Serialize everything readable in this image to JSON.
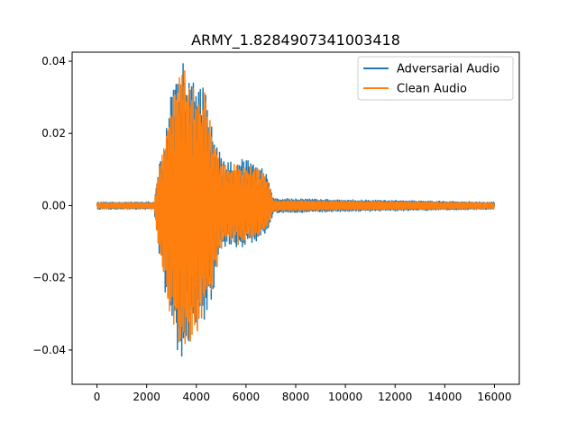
{
  "chart_data": {
    "type": "line",
    "title": "ARMY_1.8284907341003418",
    "xlabel": "",
    "ylabel": "",
    "xlim": [
      -1000,
      17000
    ],
    "ylim": [
      -0.0495,
      0.0425
    ],
    "x_ticks": [
      0,
      2000,
      4000,
      6000,
      8000,
      10000,
      12000,
      14000,
      16000
    ],
    "x_tick_labels": [
      "0",
      "2000",
      "4000",
      "6000",
      "8000",
      "10000",
      "12000",
      "14000",
      "16000"
    ],
    "y_ticks": [
      -0.04,
      -0.02,
      0.0,
      0.02,
      0.04
    ],
    "y_tick_labels": [
      "−0.04",
      "−0.02",
      "0.00",
      "0.02",
      "0.04"
    ],
    "grid": false,
    "legend_position": "top-right",
    "x_range": [
      0,
      16000
    ],
    "series": [
      {
        "name": "Adversarial Audio",
        "color": "#1f77b4",
        "envelope": [
          {
            "x": 0,
            "max": 0.001,
            "min": -0.001
          },
          {
            "x": 2300,
            "max": 0.001,
            "min": -0.001
          },
          {
            "x": 2500,
            "max": 0.012,
            "min": -0.014
          },
          {
            "x": 2700,
            "max": 0.016,
            "min": -0.022
          },
          {
            "x": 2900,
            "max": 0.028,
            "min": -0.032
          },
          {
            "x": 3150,
            "max": 0.036,
            "min": -0.038
          },
          {
            "x": 3450,
            "max": 0.042,
            "min": -0.046
          },
          {
            "x": 3700,
            "max": 0.038,
            "min": -0.041
          },
          {
            "x": 4050,
            "max": 0.034,
            "min": -0.037
          },
          {
            "x": 4400,
            "max": 0.032,
            "min": -0.03
          },
          {
            "x": 4700,
            "max": 0.02,
            "min": -0.024
          },
          {
            "x": 5000,
            "max": 0.014,
            "min": -0.013
          },
          {
            "x": 5300,
            "max": 0.012,
            "min": -0.011
          },
          {
            "x": 5700,
            "max": 0.013,
            "min": -0.012
          },
          {
            "x": 6000,
            "max": 0.013,
            "min": -0.011
          },
          {
            "x": 6300,
            "max": 0.012,
            "min": -0.011
          },
          {
            "x": 6600,
            "max": 0.011,
            "min": -0.009
          },
          {
            "x": 6900,
            "max": 0.008,
            "min": -0.007
          },
          {
            "x": 7100,
            "max": 0.002,
            "min": -0.002
          },
          {
            "x": 16000,
            "max": 0.001,
            "min": -0.001
          }
        ]
      },
      {
        "name": "Clean Audio",
        "color": "#ff7f0e",
        "envelope": [
          {
            "x": 0,
            "max": 0.0008,
            "min": -0.0008
          },
          {
            "x": 2300,
            "max": 0.0008,
            "min": -0.0008
          },
          {
            "x": 2500,
            "max": 0.011,
            "min": -0.013
          },
          {
            "x": 2700,
            "max": 0.017,
            "min": -0.02
          },
          {
            "x": 2900,
            "max": 0.026,
            "min": -0.029
          },
          {
            "x": 3150,
            "max": 0.035,
            "min": -0.036
          },
          {
            "x": 3450,
            "max": 0.041,
            "min": -0.043
          },
          {
            "x": 3700,
            "max": 0.036,
            "min": -0.039
          },
          {
            "x": 4050,
            "max": 0.033,
            "min": -0.035
          },
          {
            "x": 4400,
            "max": 0.031,
            "min": -0.029
          },
          {
            "x": 4700,
            "max": 0.019,
            "min": -0.022
          },
          {
            "x": 5000,
            "max": 0.013,
            "min": -0.012
          },
          {
            "x": 5300,
            "max": 0.011,
            "min": -0.01
          },
          {
            "x": 5700,
            "max": 0.012,
            "min": -0.011
          },
          {
            "x": 6000,
            "max": 0.012,
            "min": -0.01
          },
          {
            "x": 6300,
            "max": 0.011,
            "min": -0.01
          },
          {
            "x": 6600,
            "max": 0.01,
            "min": -0.008
          },
          {
            "x": 6900,
            "max": 0.007,
            "min": -0.006
          },
          {
            "x": 7100,
            "max": 0.0015,
            "min": -0.0015
          },
          {
            "x": 16000,
            "max": 0.0008,
            "min": -0.0008
          }
        ]
      }
    ]
  }
}
